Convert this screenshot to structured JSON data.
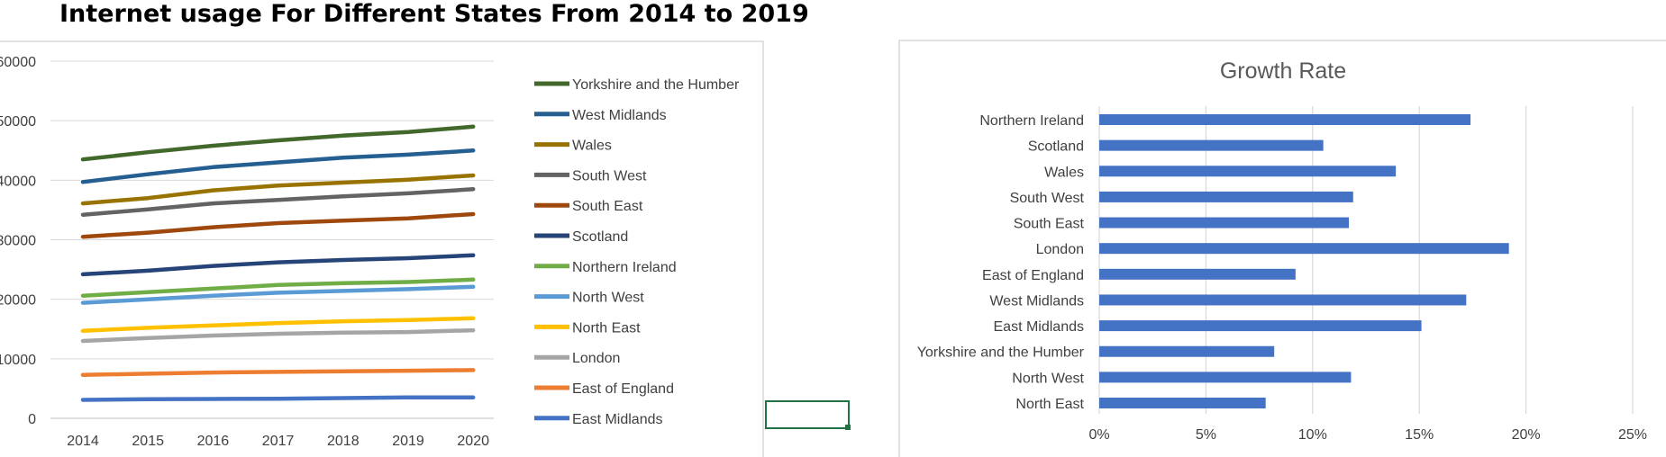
{
  "page": {
    "title": "Internet usage For Different States From 2014 to 2019"
  },
  "colors": {
    "grid": "#d9d9d9",
    "panel_border": "#d9d9d9",
    "selection": "#217346",
    "bar": "#4472c4"
  },
  "chart_data": [
    {
      "type": "line",
      "title": "",
      "xlabel": "",
      "ylabel": "",
      "x": [
        2014,
        2015,
        2016,
        2017,
        2018,
        2019,
        2020
      ],
      "ylim": [
        0,
        60000
      ],
      "yticks": [
        0,
        10000,
        20000,
        30000,
        40000,
        50000,
        60000
      ],
      "ytick_labels": [
        "0",
        "10000",
        "20000",
        "30000",
        "40000",
        "50000",
        "60000"
      ],
      "grid": true,
      "legend_position": "right",
      "series": [
        {
          "name": "Yorkshire and the Humber",
          "color": "#43682b",
          "values": [
            43500,
            44700,
            45800,
            46700,
            47500,
            48100,
            49000
          ]
        },
        {
          "name": "West Midlands",
          "color": "#255e91",
          "values": [
            39700,
            41000,
            42200,
            43000,
            43800,
            44300,
            45000
          ]
        },
        {
          "name": "Wales",
          "color": "#997300",
          "values": [
            36100,
            37000,
            38300,
            39100,
            39600,
            40100,
            40800
          ]
        },
        {
          "name": "South West",
          "color": "#636363",
          "values": [
            34200,
            35100,
            36100,
            36700,
            37300,
            37800,
            38500
          ]
        },
        {
          "name": "South East",
          "color": "#9e480e",
          "values": [
            30500,
            31200,
            32100,
            32800,
            33200,
            33600,
            34300
          ]
        },
        {
          "name": "Scotland",
          "color": "#264478",
          "values": [
            24200,
            24800,
            25600,
            26200,
            26600,
            26900,
            27400
          ]
        },
        {
          "name": "Northern Ireland",
          "color": "#70ad47",
          "values": [
            20600,
            21200,
            21800,
            22400,
            22700,
            22900,
            23300
          ]
        },
        {
          "name": "North West",
          "color": "#5b9bd5",
          "values": [
            19400,
            20000,
            20600,
            21100,
            21400,
            21700,
            22100
          ]
        },
        {
          "name": "North East",
          "color": "#ffc000",
          "values": [
            14700,
            15200,
            15600,
            16000,
            16300,
            16500,
            16800
          ]
        },
        {
          "name": "London",
          "color": "#a5a5a5",
          "values": [
            13000,
            13500,
            13900,
            14200,
            14400,
            14500,
            14800
          ]
        },
        {
          "name": "East of England",
          "color": "#ed7d31",
          "values": [
            7300,
            7500,
            7700,
            7800,
            7900,
            8000,
            8100
          ]
        },
        {
          "name": "East Midlands",
          "color": "#4472c4",
          "values": [
            3100,
            3200,
            3250,
            3300,
            3400,
            3500,
            3500
          ]
        }
      ]
    },
    {
      "type": "bar",
      "orientation": "horizontal",
      "title": "Growth Rate",
      "xlabel": "",
      "ylabel": "",
      "categories": [
        "Northern Ireland",
        "Scotland",
        "Wales",
        "South West",
        "South East",
        "London",
        "East of England",
        "West Midlands",
        "East Midlands",
        "Yorkshire and the Humber",
        "North West",
        "North East"
      ],
      "values": [
        0.174,
        0.105,
        0.139,
        0.119,
        0.117,
        0.192,
        0.092,
        0.172,
        0.151,
        0.082,
        0.118,
        0.078
      ],
      "xlim": [
        0,
        0.25
      ],
      "xticks": [
        0,
        0.05,
        0.1,
        0.15,
        0.2,
        0.25
      ],
      "xtick_labels": [
        "0%",
        "5%",
        "10%",
        "15%",
        "20%",
        "25%"
      ],
      "grid": true,
      "color": "#4472c4"
    }
  ]
}
